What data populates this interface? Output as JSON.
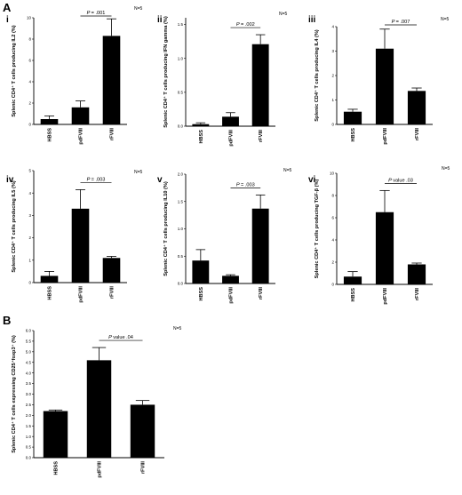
{
  "panel_labels": [
    "A",
    "B"
  ],
  "chart_data": [
    {
      "type": "bar",
      "sublabel": "i",
      "n_label": "N=5",
      "title": "",
      "ylabel": "Splenic CD4⁺ T cells producing IL2 (%)",
      "xlabel": "",
      "categories": [
        "HBSS",
        "pdFVIII",
        "rFVIII"
      ],
      "values": [
        0.5,
        1.6,
        8.3
      ],
      "errors": [
        0.3,
        0.6,
        1.6
      ],
      "ylim": [
        0,
        10
      ],
      "yticks": [
        0,
        2,
        4,
        6,
        8,
        10
      ],
      "annotation": {
        "p_symbol": "P",
        "p_text": "= .001",
        "from": 1,
        "to": 2
      },
      "grid": false
    },
    {
      "type": "bar",
      "sublabel": "ii",
      "n_label": "N=5",
      "title": "",
      "ylabel": "Splenic CD4⁺ T cells producing IFN gamma (%)",
      "xlabel": "",
      "categories": [
        "HBSS",
        "pdFVIII",
        "rFVIII"
      ],
      "values": [
        0.03,
        0.14,
        1.21
      ],
      "errors": [
        0.02,
        0.06,
        0.14
      ],
      "ylim": [
        0,
        1.6
      ],
      "yticks": [
        0,
        0.5,
        1.0,
        1.5
      ],
      "annotation": {
        "p_symbol": "P",
        "p_text": "= .002",
        "from": 1,
        "to": 2
      },
      "grid": false
    },
    {
      "type": "bar",
      "sublabel": "iii",
      "n_label": "N=5",
      "title": "",
      "ylabel": "Splenic CD4⁺ T cells producing IL4 (%)",
      "xlabel": "",
      "categories": [
        "HBSS",
        "pdFVIII",
        "rFVIII"
      ],
      "values": [
        0.52,
        3.1,
        1.37
      ],
      "errors": [
        0.1,
        0.8,
        0.12
      ],
      "ylim": [
        0,
        4
      ],
      "yticks": [
        0,
        1,
        2,
        3,
        4
      ],
      "annotation": {
        "p_symbol": "P",
        "p_text": "= .007",
        "from": 1,
        "to": 2
      },
      "grid": false
    },
    {
      "type": "bar",
      "sublabel": "iv",
      "n_label": "N=5",
      "title": "",
      "ylabel": "Splenic CD4⁺ T cells producing IL5 (%)",
      "xlabel": "",
      "categories": [
        "HBSS",
        "pdFVIII",
        "rFVIII"
      ],
      "values": [
        0.3,
        3.3,
        1.1
      ],
      "errors": [
        0.2,
        0.85,
        0.07
      ],
      "ylim": [
        0,
        5
      ],
      "yticks": [
        0,
        1,
        2,
        3,
        4,
        5
      ],
      "annotation": {
        "p_symbol": "P",
        "p_text": "= .003",
        "from": 1,
        "to": 2
      },
      "grid": false
    },
    {
      "type": "bar",
      "sublabel": "v",
      "n_label": "N=5",
      "title": "",
      "ylabel": "Splenic CD4⁺ T cells producing IL10 (%)",
      "xlabel": "",
      "categories": [
        "HBSS",
        "pdFVIII",
        "rFVIII"
      ],
      "values": [
        0.42,
        0.14,
        1.37
      ],
      "errors": [
        0.2,
        0.02,
        0.25
      ],
      "ylim": [
        0,
        2
      ],
      "yticks": [
        0,
        0.5,
        1.0,
        1.5,
        2.0
      ],
      "annotation": {
        "p_symbol": "P",
        "p_text": "= .003",
        "from": 1,
        "to": 2
      },
      "grid": false
    },
    {
      "type": "bar",
      "sublabel": "vi",
      "n_label": "N=5",
      "title": "",
      "ylabel": "Splenic CD4⁺ T cells producing TGF-β (%)",
      "xlabel": "",
      "categories": [
        "HBSS",
        "pdFVIII",
        "rFVIII"
      ],
      "values": [
        0.7,
        6.5,
        1.8
      ],
      "errors": [
        0.45,
        1.95,
        0.12
      ],
      "ylim": [
        0,
        10
      ],
      "yticks": [
        0,
        2,
        4,
        6,
        8,
        10
      ],
      "annotation": {
        "p_symbol": "P",
        "p_text": "value .03",
        "from": 1,
        "to": 2
      },
      "grid": false
    },
    {
      "type": "bar",
      "sublabel": "",
      "n_label": "N=5",
      "title": "",
      "ylabel": "Splenic CD4⁺ T cells expressing CD25⁺foxp3⁺ (%)",
      "xlabel": "",
      "categories": [
        "HBSS",
        "pdFVIII",
        "rFVIII"
      ],
      "values": [
        2.2,
        4.6,
        2.5
      ],
      "errors": [
        0.05,
        0.6,
        0.2
      ],
      "ylim": [
        0,
        6
      ],
      "yticks": [
        0,
        0.5,
        1.0,
        1.5,
        2.0,
        2.5,
        3.0,
        3.5,
        4.0,
        4.5,
        5.0,
        5.5,
        6.0
      ],
      "annotation": {
        "p_symbol": "P",
        "p_text": "value .04",
        "from": 1,
        "to": 2
      },
      "grid": false
    }
  ]
}
